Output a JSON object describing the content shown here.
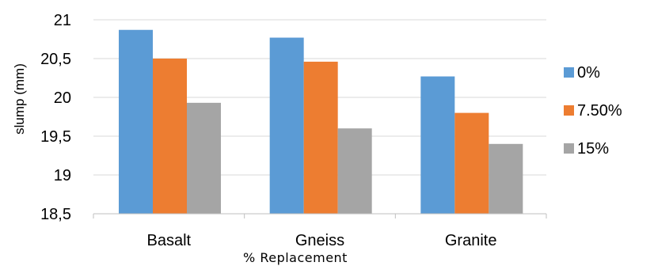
{
  "chart_data": {
    "type": "bar",
    "title": "",
    "xlabel": "% Replacement",
    "ylabel": "slump (mm)",
    "categories": [
      "Basalt",
      "Gneiss",
      "Granite"
    ],
    "series": [
      {
        "name": "0%",
        "color": "#5B9BD5",
        "values": [
          20.87,
          20.77,
          20.27
        ]
      },
      {
        "name": "7.50%",
        "color": "#ED7D31",
        "values": [
          20.5,
          20.46,
          19.8
        ]
      },
      {
        "name": "15%",
        "color": "#A5A5A5",
        "values": [
          19.93,
          19.6,
          19.4
        ]
      }
    ],
    "ylim": [
      18.5,
      21
    ],
    "yticks": [
      18.5,
      19,
      19.5,
      20,
      20.5,
      21
    ],
    "ytick_labels": [
      "18,5",
      "19",
      "19,5",
      "20",
      "20,5",
      "21"
    ],
    "grid": true,
    "legend_position": "right"
  }
}
